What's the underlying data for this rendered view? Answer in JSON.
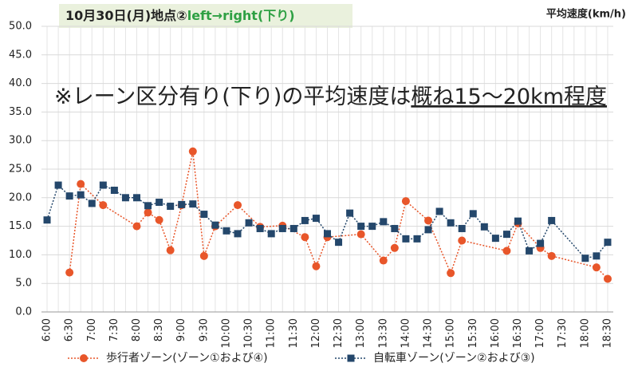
{
  "chart_data": {
    "type": "line",
    "title": "10月30日(月)地点②",
    "title_highlight": "left→right(下り)",
    "y_label": "平均速度(km/h)",
    "annotation": "※レーン区分有り(下り)の平均速度は",
    "annotation_underlined": "概ね15～20km程度",
    "categories": [
      "6:00",
      null,
      "6:30",
      null,
      "7:00",
      null,
      "7:30",
      null,
      "8:00",
      null,
      "8:30",
      null,
      "9:00",
      null,
      "9:30",
      null,
      "10:00",
      null,
      "10:30",
      null,
      "11:00",
      null,
      "11:30",
      null,
      "12:00",
      null,
      "12:30",
      null,
      "13:00",
      null,
      "13:30",
      null,
      "14:00",
      null,
      "14:30",
      null,
      "15:00",
      null,
      "15:30",
      null,
      "16:00",
      null,
      "16:30",
      null,
      "17:00",
      null,
      "17:30",
      null,
      "18:00",
      null,
      "18:30"
    ],
    "series": [
      {
        "name": "歩行者ゾーン(ゾーン①および④)",
        "color": "#e8562a",
        "marker": "circle",
        "values": [
          null,
          null,
          6.9,
          22.4,
          null,
          18.7,
          null,
          null,
          15.0,
          17.4,
          16.1,
          10.8,
          18.7,
          28.1,
          9.8,
          15.0,
          null,
          18.7,
          null,
          14.9,
          null,
          15.1,
          null,
          13.1,
          8.0,
          13.1,
          null,
          null,
          13.6,
          null,
          9.0,
          11.2,
          19.4,
          null,
          16.0,
          null,
          6.8,
          12.5,
          null,
          null,
          null,
          10.7,
          15.5,
          null,
          11.2,
          9.8,
          null,
          null,
          null,
          7.8,
          5.8
        ]
      },
      {
        "name": "自転車ゾーン(ゾーン②および③)",
        "color": "#24476b",
        "marker": "square",
        "values": [
          16.1,
          22.2,
          20.3,
          20.5,
          19.0,
          22.2,
          21.3,
          20.0,
          20.0,
          18.6,
          19.2,
          18.5,
          18.8,
          18.9,
          17.1,
          15.2,
          14.2,
          13.7,
          15.6,
          14.6,
          13.7,
          14.6,
          14.6,
          16.0,
          16.4,
          13.7,
          12.2,
          17.3,
          15.0,
          15.0,
          15.8,
          14.6,
          12.8,
          12.8,
          14.4,
          17.6,
          15.6,
          14.6,
          17.2,
          14.9,
          12.9,
          13.6,
          15.9,
          10.7,
          12.0,
          16.0,
          null,
          null,
          9.4,
          9.8,
          12.2
        ]
      }
    ],
    "ylim": [
      0,
      50
    ],
    "yticks": [
      {
        "value": 0,
        "label": "0.0"
      },
      {
        "value": 5,
        "label": "5.0"
      },
      {
        "value": 10,
        "label": "10.0"
      },
      {
        "value": 15,
        "label": "15.0"
      },
      {
        "value": 20,
        "label": "20.0"
      },
      {
        "value": 25,
        "label": "25.0"
      },
      {
        "value": 30,
        "label": "30.0"
      },
      {
        "value": 35,
        "label": "35.0"
      },
      {
        "value": 40,
        "label": "40.0"
      },
      {
        "value": 45,
        "label": "45.0"
      },
      {
        "value": 50,
        "label": "50.0"
      }
    ],
    "grid": true,
    "connect_gaps": true,
    "legend": "bottom"
  }
}
